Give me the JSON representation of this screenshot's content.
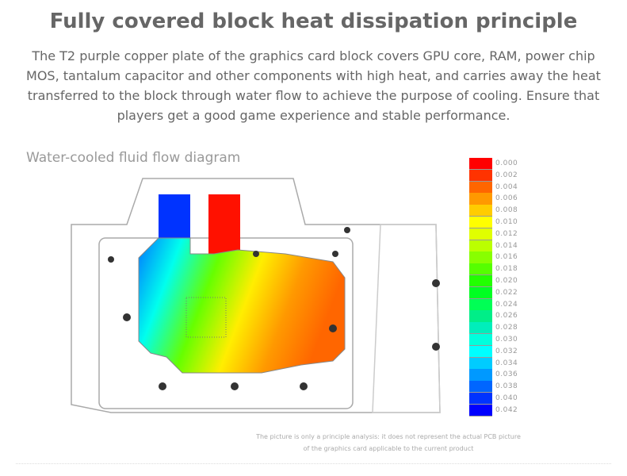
{
  "title": "Fully covered block heat dissipation principle",
  "description": "The T2 purple copper plate of the graphics card block covers GPU core, RAM, power chip MOS, tantalum capacitor and other components with high heat, and carries away the heat transferred to the block through water flow to achieve the purpose of cooling. Ensure that players get a good game experience and stable performance.",
  "diagram_title": "Water-cooled fluid flow diagram",
  "legend": [
    {
      "label": "0.000",
      "color": "#ff0000"
    },
    {
      "label": "0.002",
      "color": "#ff3300"
    },
    {
      "label": "0.004",
      "color": "#ff6600"
    },
    {
      "label": "0.006",
      "color": "#ff9900"
    },
    {
      "label": "0.008",
      "color": "#ffcc00"
    },
    {
      "label": "0.010",
      "color": "#ffff00"
    },
    {
      "label": "0.012",
      "color": "#e0ff00"
    },
    {
      "label": "0.014",
      "color": "#bbff00"
    },
    {
      "label": "0.016",
      "color": "#88ff00"
    },
    {
      "label": "0.018",
      "color": "#55ff00"
    },
    {
      "label": "0.020",
      "color": "#22ff00"
    },
    {
      "label": "0.022",
      "color": "#00ff22"
    },
    {
      "label": "0.024",
      "color": "#00ff55"
    },
    {
      "label": "0.026",
      "color": "#00ee88"
    },
    {
      "label": "0.028",
      "color": "#00eebb"
    },
    {
      "label": "0.030",
      "color": "#00ffdd"
    },
    {
      "label": "0.032",
      "color": "#00ffff"
    },
    {
      "label": "0.034",
      "color": "#00ccff"
    },
    {
      "label": "0.036",
      "color": "#0099ff"
    },
    {
      "label": "0.038",
      "color": "#0066ff"
    },
    {
      "label": "0.040",
      "color": "#0033ff"
    },
    {
      "label": "0.042",
      "color": "#0000ff"
    }
  ],
  "note": [
    "The picture is only a principle analysis: it does not represent the actual PCB picture",
    "of the graphics card applicable to the current product"
  ]
}
